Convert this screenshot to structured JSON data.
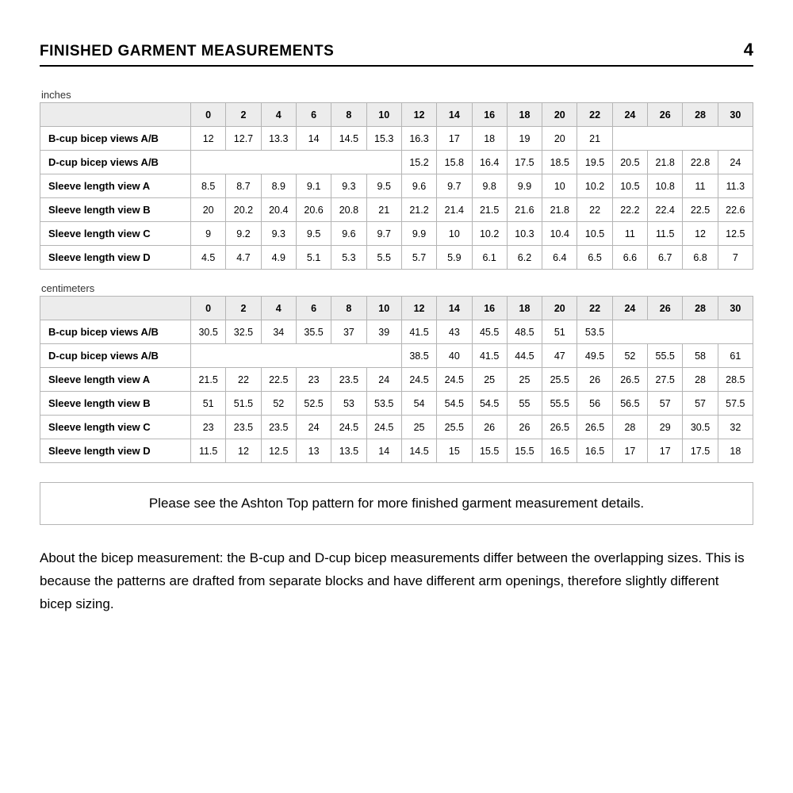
{
  "header": {
    "title": "FINISHED GARMENT MEASUREMENTS",
    "page_number": "4"
  },
  "sizes": [
    "0",
    "2",
    "4",
    "6",
    "8",
    "10",
    "12",
    "14",
    "16",
    "18",
    "20",
    "22",
    "24",
    "26",
    "28",
    "30"
  ],
  "tables": {
    "inches": {
      "unit_label": "inches",
      "rows": [
        {
          "label": "B-cup bicep views A/B",
          "values": [
            "12",
            "12.7",
            "13.3",
            "14",
            "14.5",
            "15.3",
            "16.3",
            "17",
            "18",
            "19",
            "20",
            "21",
            "",
            "",
            "",
            ""
          ]
        },
        {
          "label": "D-cup bicep views A/B",
          "values": [
            "",
            "",
            "",
            "",
            "",
            "",
            "15.2",
            "15.8",
            "16.4",
            "17.5",
            "18.5",
            "19.5",
            "20.5",
            "21.8",
            "22.8",
            "24"
          ]
        },
        {
          "label": "Sleeve length view A",
          "values": [
            "8.5",
            "8.7",
            "8.9",
            "9.1",
            "9.3",
            "9.5",
            "9.6",
            "9.7",
            "9.8",
            "9.9",
            "10",
            "10.2",
            "10.5",
            "10.8",
            "11",
            "11.3"
          ]
        },
        {
          "label": "Sleeve length view B",
          "values": [
            "20",
            "20.2",
            "20.4",
            "20.6",
            "20.8",
            "21",
            "21.2",
            "21.4",
            "21.5",
            "21.6",
            "21.8",
            "22",
            "22.2",
            "22.4",
            "22.5",
            "22.6"
          ]
        },
        {
          "label": "Sleeve length view C",
          "values": [
            "9",
            "9.2",
            "9.3",
            "9.5",
            "9.6",
            "9.7",
            "9.9",
            "10",
            "10.2",
            "10.3",
            "10.4",
            "10.5",
            "11",
            "11.5",
            "12",
            "12.5"
          ]
        },
        {
          "label": "Sleeve length view D",
          "values": [
            "4.5",
            "4.7",
            "4.9",
            "5.1",
            "5.3",
            "5.5",
            "5.7",
            "5.9",
            "6.1",
            "6.2",
            "6.4",
            "6.5",
            "6.6",
            "6.7",
            "6.8",
            "7"
          ]
        }
      ]
    },
    "centimeters": {
      "unit_label": "centimeters",
      "rows": [
        {
          "label": "B-cup bicep views A/B",
          "values": [
            "30.5",
            "32.5",
            "34",
            "35.5",
            "37",
            "39",
            "41.5",
            "43",
            "45.5",
            "48.5",
            "51",
            "53.5",
            "",
            "",
            "",
            ""
          ]
        },
        {
          "label": "D-cup bicep views A/B",
          "values": [
            "",
            "",
            "",
            "",
            "",
            "",
            "38.5",
            "40",
            "41.5",
            "44.5",
            "47",
            "49.5",
            "52",
            "55.5",
            "58",
            "61"
          ]
        },
        {
          "label": "Sleeve length view A",
          "values": [
            "21.5",
            "22",
            "22.5",
            "23",
            "23.5",
            "24",
            "24.5",
            "24.5",
            "25",
            "25",
            "25.5",
            "26",
            "26.5",
            "27.5",
            "28",
            "28.5"
          ]
        },
        {
          "label": "Sleeve length view B",
          "values": [
            "51",
            "51.5",
            "52",
            "52.5",
            "53",
            "53.5",
            "54",
            "54.5",
            "54.5",
            "55",
            "55.5",
            "56",
            "56.5",
            "57",
            "57",
            "57.5"
          ]
        },
        {
          "label": "Sleeve length view C",
          "values": [
            "23",
            "23.5",
            "23.5",
            "24",
            "24.5",
            "24.5",
            "25",
            "25.5",
            "26",
            "26",
            "26.5",
            "26.5",
            "28",
            "29",
            "30.5",
            "32"
          ]
        },
        {
          "label": "Sleeve length view D",
          "values": [
            "11.5",
            "12",
            "12.5",
            "13",
            "13.5",
            "14",
            "14.5",
            "15",
            "15.5",
            "15.5",
            "16.5",
            "16.5",
            "17",
            "17",
            "17.5",
            "18"
          ]
        }
      ]
    }
  },
  "note_box": "Please see the Ashton Top pattern for more finished garment measurement details.",
  "body_text": "About the bicep measurement: the B-cup and D-cup bicep measurements differ between the overlapping sizes. This is because the patterns are drafted from separate blocks and have different arm openings, therefore slightly different bicep sizing.",
  "style": {
    "background_color": "#ffffff",
    "text_color": "#000000",
    "border_color": "#b5b5b5",
    "header_bg": "#ececec",
    "title_fontsize": 19,
    "pagenum_fontsize": 22,
    "cell_fontsize": 12.5,
    "body_fontsize": 17
  }
}
